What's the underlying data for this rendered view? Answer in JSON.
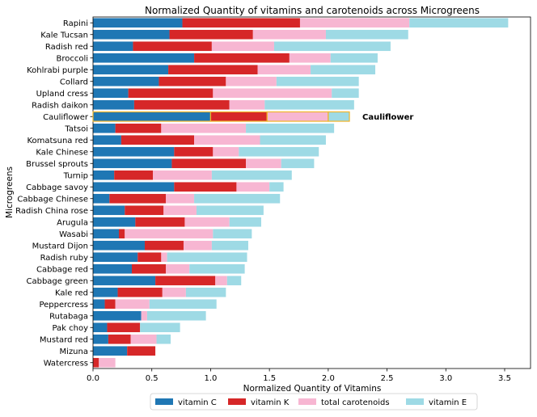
{
  "chart_data": {
    "type": "bar",
    "orientation": "horizontal",
    "stacked": true,
    "title": "Normalized Quantity of vitamins and carotenoids across Microgreens",
    "xlabel": "Normalized Quantity of Vitamins",
    "ylabel": "Microgreens",
    "xlim": [
      0,
      3.72
    ],
    "xticks": [
      "0.0",
      "0.5",
      "1.0",
      "1.5",
      "2.0",
      "2.5",
      "3.0",
      "3.5"
    ],
    "grid": false,
    "legend_position": "bottom",
    "categories": [
      "Rapini",
      "Kale Tucsan",
      "Radish red",
      "Broccoli",
      "Kohlrabi purple",
      "Collard",
      "Upland cress",
      "Radish daikon",
      "Cauliflower",
      "Tatsoi",
      "Komatsuna red",
      "Kale Chinese",
      "Brussel sprouts",
      "Turnip",
      "Cabbage savoy",
      "Cabbage Chinese",
      "Radish China rose",
      "Arugula",
      "Wasabi",
      "Mustard Dijon",
      "Radish ruby",
      "Cabbage red",
      "Cabbage green",
      "Kale red",
      "Peppercress",
      "Rutabaga",
      "Pak choy",
      "Mustard red",
      "Mizuna",
      "Watercress"
    ],
    "series": [
      {
        "name": "vitamin C",
        "color": "#1f77b4",
        "values": [
          0.76,
          0.65,
          0.34,
          0.86,
          0.64,
          0.56,
          0.3,
          0.35,
          1.0,
          0.19,
          0.24,
          0.69,
          0.67,
          0.18,
          0.69,
          0.14,
          0.27,
          0.36,
          0.22,
          0.44,
          0.38,
          0.33,
          0.53,
          0.21,
          0.1,
          0.41,
          0.12,
          0.13,
          0.29,
          0.0
        ]
      },
      {
        "name": "vitamin K",
        "color": "#d62728",
        "values": [
          1.0,
          0.71,
          0.67,
          0.81,
          0.76,
          0.57,
          0.72,
          0.81,
          0.48,
          0.39,
          0.62,
          0.33,
          0.63,
          0.33,
          0.53,
          0.48,
          0.33,
          0.42,
          0.05,
          0.33,
          0.2,
          0.29,
          0.51,
          0.38,
          0.09,
          0.0,
          0.28,
          0.19,
          0.24,
          0.05
        ]
      },
      {
        "name": "total carotenoids",
        "color": "#f7b6d2",
        "values": [
          0.93,
          0.62,
          0.53,
          0.35,
          0.45,
          0.43,
          1.01,
          0.3,
          0.52,
          0.72,
          0.56,
          0.22,
          0.3,
          0.5,
          0.28,
          0.24,
          0.28,
          0.38,
          0.75,
          0.24,
          0.05,
          0.2,
          0.1,
          0.2,
          0.29,
          0.05,
          0.0,
          0.22,
          0.0,
          0.14
        ]
      },
      {
        "name": "vitamin E",
        "color": "#9edae5",
        "values": [
          0.84,
          0.7,
          0.99,
          0.4,
          0.55,
          0.7,
          0.23,
          0.76,
          0.18,
          0.75,
          0.56,
          0.68,
          0.28,
          0.68,
          0.12,
          0.73,
          0.57,
          0.27,
          0.33,
          0.31,
          0.68,
          0.47,
          0.12,
          0.34,
          0.57,
          0.5,
          0.34,
          0.12,
          0.0,
          0.0
        ]
      }
    ],
    "highlight": {
      "category": "Cauliflower",
      "label": "Cauliflower",
      "outline_color": "#f0b429"
    }
  }
}
